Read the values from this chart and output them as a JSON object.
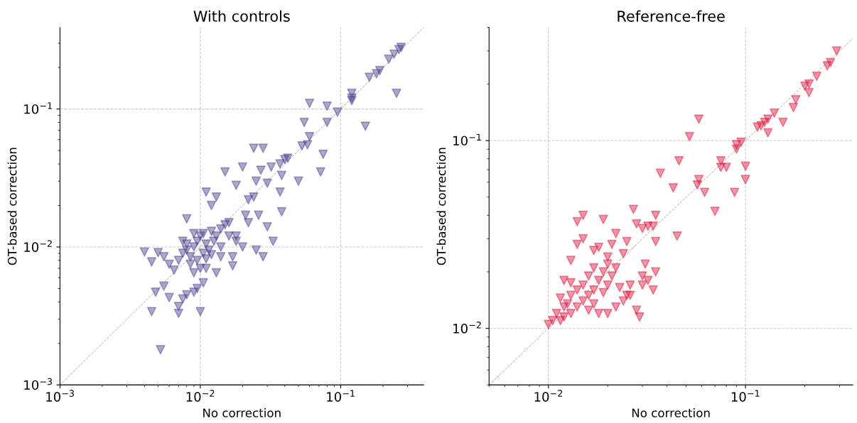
{
  "chart_data": [
    {
      "type": "scatter",
      "title": "With controls",
      "xlabel": "No correction",
      "ylabel": "OT-based correction",
      "log": "xy",
      "grid": true,
      "xlim": [
        0.001,
        0.39
      ],
      "ylim": [
        0.001,
        0.39
      ],
      "xticks": [
        {
          "value": 0.001,
          "label": "10$^{−3}$"
        },
        {
          "value": 0.01,
          "label": "10$^{−2}$"
        },
        {
          "value": 0.1,
          "label": "10$^{−1}$"
        }
      ],
      "yticks": [
        {
          "value": 0.001,
          "label": "10$^{−3}$"
        },
        {
          "value": 0.01,
          "label": "10$^{−2}$"
        },
        {
          "value": 0.1,
          "label": "10$^{−1}$"
        }
      ],
      "series": [
        {
          "type": "line",
          "line_style": "dashed",
          "color": "#aaaaaa",
          "x": [
            0.001,
            0.39
          ],
          "values": [
            0.001,
            0.39
          ]
        },
        {
          "marker": "triangle",
          "color": "#483d8b",
          "x": [
            0.27,
            0.26,
            0.24,
            0.22,
            0.19,
            0.18,
            0.16,
            0.12,
            0.12,
            0.12,
            0.25,
            0.15,
            0.095,
            0.08,
            0.08,
            0.06,
            0.06,
            0.058,
            0.053,
            0.055,
            0.075,
            0.072,
            0.05,
            0.042,
            0.04,
            0.038,
            0.037,
            0.032,
            0.03,
            0.028,
            0.024,
            0.027,
            0.025,
            0.024,
            0.022,
            0.02,
            0.018,
            0.015,
            0.013,
            0.012,
            0.011,
            0.008,
            0.016,
            0.018,
            0.02,
            0.022,
            0.025,
            0.028,
            0.033,
            0.038,
            0.037,
            0.03,
            0.026,
            0.017,
            0.017,
            0.014,
            0.013,
            0.011,
            0.01,
            0.0052,
            0.0045,
            0.0048,
            0.0055,
            0.006,
            0.007,
            0.007,
            0.0075,
            0.008,
            0.009,
            0.0095,
            0.0105,
            0.004,
            0.0045,
            0.005,
            0.0055,
            0.006,
            0.0065,
            0.007,
            0.0075,
            0.008,
            0.0085,
            0.009,
            0.0095,
            0.01,
            0.0105,
            0.011,
            0.0115,
            0.012,
            0.0125,
            0.013,
            0.014,
            0.015,
            0.0085,
            0.009,
            0.0095,
            0.01,
            0.011,
            0.012,
            0.008,
            0.0075,
            0.009,
            0.0105,
            0.016,
            0.018,
            0.021,
            0.014
          ],
          "values": [
            0.28,
            0.27,
            0.25,
            0.23,
            0.19,
            0.18,
            0.17,
            0.13,
            0.12,
            0.115,
            0.13,
            0.075,
            0.095,
            0.105,
            0.08,
            0.11,
            0.063,
            0.055,
            0.054,
            0.08,
            0.047,
            0.035,
            0.03,
            0.044,
            0.043,
            0.033,
            0.04,
            0.038,
            0.029,
            0.052,
            0.052,
            0.036,
            0.03,
            0.023,
            0.022,
            0.038,
            0.028,
            0.035,
            0.023,
            0.02,
            0.025,
            0.016,
            0.015,
            0.012,
            0.01,
            0.015,
            0.0095,
            0.0085,
            0.011,
            0.018,
            0.025,
            0.014,
            0.017,
            0.0073,
            0.0085,
            0.01,
            0.0065,
            0.007,
            0.0034,
            0.0018,
            0.0034,
            0.0047,
            0.0052,
            0.0043,
            0.0033,
            0.0037,
            0.0042,
            0.0045,
            0.0047,
            0.005,
            0.0055,
            0.0092,
            0.0078,
            0.0091,
            0.0085,
            0.0075,
            0.0068,
            0.008,
            0.009,
            0.0095,
            0.0085,
            0.01,
            0.011,
            0.012,
            0.009,
            0.0105,
            0.0095,
            0.013,
            0.011,
            0.012,
            0.0135,
            0.0145,
            0.0075,
            0.0065,
            0.008,
            0.007,
            0.0082,
            0.0088,
            0.0105,
            0.011,
            0.0125,
            0.0125,
            0.012,
            0.011,
            0.017,
            0.0085
          ]
        }
      ]
    },
    {
      "type": "scatter",
      "title": "Reference-free",
      "xlabel": "No correction",
      "ylabel": "OT-based correction",
      "log": "xy",
      "grid": true,
      "xlim": [
        0.005,
        0.35
      ],
      "ylim": [
        0.005,
        0.4
      ],
      "xticks": [
        {
          "value": 0.01,
          "label": "10$^{−2}$"
        },
        {
          "value": 0.1,
          "label": "10$^{−1}$"
        }
      ],
      "yticks": [
        {
          "value": 0.01,
          "label": "10$^{−2}$"
        },
        {
          "value": 0.1,
          "label": "10$^{−1}$"
        }
      ],
      "series": [
        {
          "type": "line",
          "line_style": "dashed",
          "color": "#aaaaaa",
          "x": [
            0.005,
            0.35
          ],
          "values": [
            0.005,
            0.35
          ]
        },
        {
          "marker": "triangle",
          "color": "#dc143c",
          "x": [
            0.29,
            0.27,
            0.26,
            0.23,
            0.21,
            0.2,
            0.21,
            0.18,
            0.175,
            0.155,
            0.14,
            0.13,
            0.125,
            0.12,
            0.115,
            0.13,
            0.1,
            0.1,
            0.095,
            0.09,
            0.09,
            0.088,
            0.08,
            0.075,
            0.075,
            0.07,
            0.062,
            0.058,
            0.058,
            0.057,
            0.052,
            0.046,
            0.045,
            0.043,
            0.037,
            0.035,
            0.034,
            0.035,
            0.032,
            0.03,
            0.03,
            0.032,
            0.034,
            0.035,
            0.028,
            0.027,
            0.029,
            0.028,
            0.026,
            0.025,
            0.024,
            0.022,
            0.021,
            0.02,
            0.02,
            0.019,
            0.018,
            0.017,
            0.015,
            0.015,
            0.014,
            0.014,
            0.013,
            0.013,
            0.012,
            0.012,
            0.0115,
            0.011,
            0.0105,
            0.01,
            0.0115,
            0.012,
            0.013,
            0.014,
            0.014,
            0.015,
            0.015,
            0.016,
            0.016,
            0.017,
            0.017,
            0.018,
            0.018,
            0.019,
            0.019,
            0.02,
            0.021,
            0.022,
            0.023,
            0.024,
            0.025,
            0.026,
            0.022,
            0.02,
            0.013,
            0.0125,
            0.016,
            0.017,
            0.031,
            0.03
          ],
          "values": [
            0.3,
            0.26,
            0.25,
            0.22,
            0.2,
            0.195,
            0.18,
            0.165,
            0.15,
            0.125,
            0.14,
            0.13,
            0.125,
            0.12,
            0.118,
            0.11,
            0.073,
            0.062,
            0.098,
            0.095,
            0.09,
            0.053,
            0.072,
            0.078,
            0.072,
            0.042,
            0.053,
            0.13,
            0.062,
            0.058,
            0.105,
            0.078,
            0.031,
            0.056,
            0.067,
            0.04,
            0.035,
            0.029,
            0.035,
            0.034,
            0.019,
            0.018,
            0.016,
            0.02,
            0.036,
            0.043,
            0.0115,
            0.0125,
            0.015,
            0.029,
            0.025,
            0.032,
            0.028,
            0.024,
            0.022,
            0.038,
            0.027,
            0.026,
            0.04,
            0.03,
            0.037,
            0.028,
            0.023,
            0.015,
            0.018,
            0.013,
            0.0145,
            0.012,
            0.011,
            0.0105,
            0.011,
            0.0115,
            0.012,
            0.013,
            0.016,
            0.014,
            0.017,
            0.015,
            0.019,
            0.016,
            0.0135,
            0.012,
            0.018,
            0.02,
            0.0155,
            0.017,
            0.019,
            0.021,
            0.0165,
            0.014,
            0.015,
            0.017,
            0.013,
            0.012,
            0.0175,
            0.0135,
            0.0125,
            0.021,
            0.022,
            0.017
          ]
        }
      ]
    }
  ]
}
